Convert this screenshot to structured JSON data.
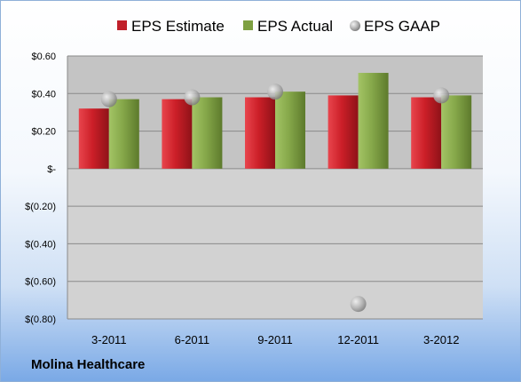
{
  "company": "Molina Healthcare",
  "chart_data": {
    "type": "bar",
    "categories": [
      "3-2011",
      "6-2011",
      "9-2011",
      "12-2011",
      "3-2012"
    ],
    "series": [
      {
        "name": "EPS Estimate",
        "kind": "bar",
        "color": "#c0202a",
        "values": [
          0.32,
          0.37,
          0.38,
          0.39,
          0.38
        ]
      },
      {
        "name": "EPS Actual",
        "kind": "bar",
        "color": "#7ea041",
        "values": [
          0.37,
          0.38,
          0.41,
          0.51,
          0.39
        ]
      },
      {
        "name": "EPS GAAP",
        "kind": "marker",
        "color": "#a8a8a8",
        "values": [
          0.37,
          0.38,
          0.41,
          -0.72,
          0.39
        ]
      }
    ],
    "yticks": [
      0.6,
      0.4,
      0.2,
      0,
      -0.2,
      -0.4,
      -0.6,
      -0.8
    ],
    "ytick_labels": [
      "$0.60",
      "$0.40",
      "$0.20",
      "$-",
      "$(0.20)",
      "$(0.40)",
      "$(0.60)",
      "$(0.80)"
    ],
    "ylim": [
      -0.8,
      0.6
    ],
    "grid": true,
    "legend_position": "top"
  }
}
